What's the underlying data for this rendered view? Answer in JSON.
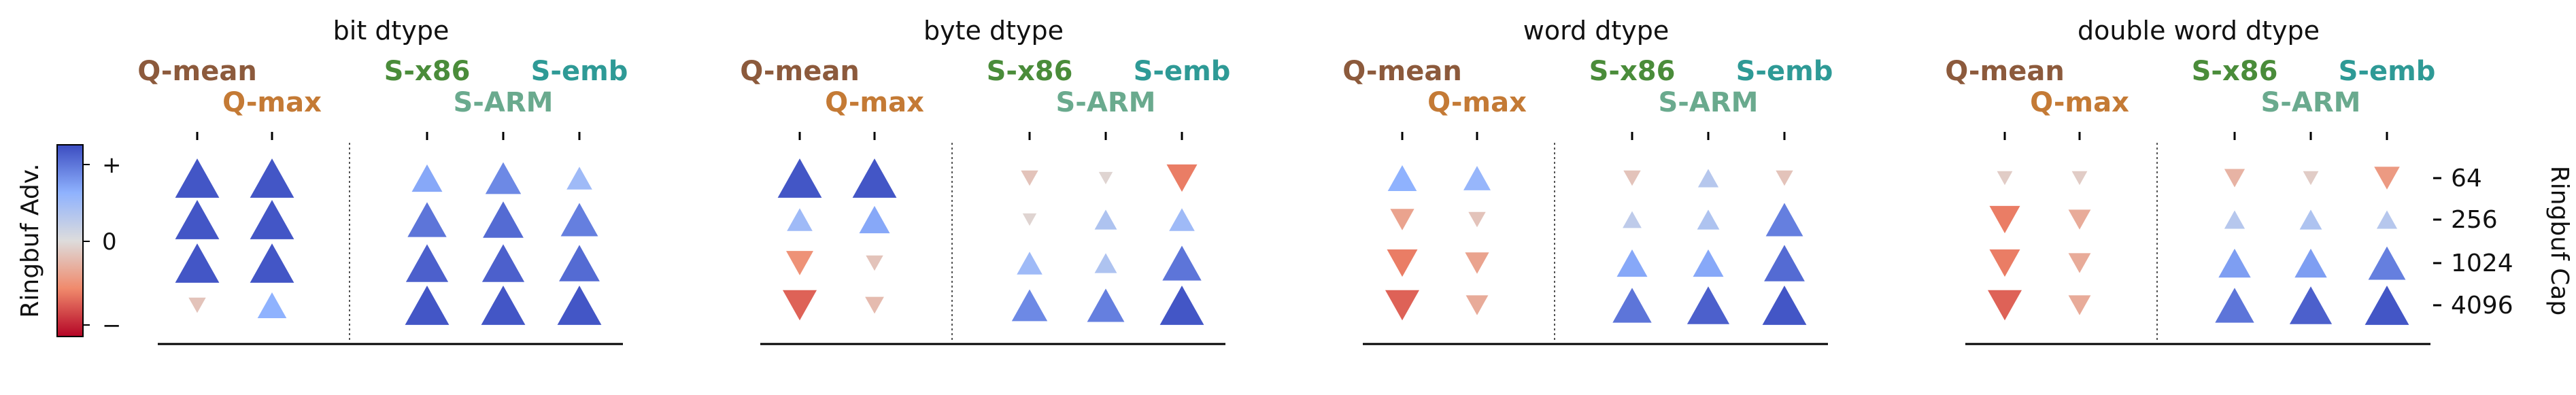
{
  "chart_data": {
    "type": "scatter",
    "marker_encoding": "triangle up = positive advantage, triangle down = negative; size and color = magnitude",
    "colorbar": {
      "label": "Ringbuf Adv.",
      "tick_labels": [
        "+",
        "0",
        "−"
      ],
      "colormap": "coolwarm",
      "range": [
        -1,
        1
      ]
    },
    "y_axis": {
      "label": "Ringbuf Cap",
      "tick_labels": [
        "64",
        "256",
        "1024",
        "4096"
      ],
      "position": "right"
    },
    "columns": [
      {
        "label": "Q-mean",
        "color": "#8c5a3c",
        "row": "upper"
      },
      {
        "label": "Q-max",
        "color": "#c47a35",
        "row": "lower"
      },
      {
        "label": "S-x86",
        "color": "#4a8c3a",
        "row": "upper"
      },
      {
        "label": "S-ARM",
        "color": "#6aaa8e",
        "row": "lower"
      },
      {
        "label": "S-emb",
        "color": "#2e9a96",
        "row": "upper"
      }
    ],
    "panels": [
      {
        "title": "bit dtype",
        "values": [
          [
            0.95,
            0.95,
            0.55,
            0.7,
            0.4
          ],
          [
            0.95,
            0.95,
            0.8,
            0.85,
            0.75
          ],
          [
            0.95,
            0.95,
            0.9,
            0.9,
            0.85
          ],
          [
            -0.15,
            0.5,
            0.95,
            0.95,
            0.95
          ]
        ]
      },
      {
        "title": "byte dtype",
        "values": [
          [
            0.95,
            0.95,
            -0.15,
            -0.05,
            -0.55
          ],
          [
            0.4,
            0.55,
            -0.05,
            0.3,
            0.4
          ],
          [
            -0.45,
            -0.15,
            0.4,
            0.3,
            0.8
          ],
          [
            -0.65,
            -0.2,
            0.7,
            0.75,
            0.95
          ]
        ]
      },
      {
        "title": "word dtype",
        "values": [
          [
            0.5,
            0.45,
            -0.15,
            0.25,
            -0.15
          ],
          [
            -0.35,
            -0.15,
            0.2,
            0.3,
            0.75
          ],
          [
            -0.55,
            -0.35,
            0.55,
            0.55,
            0.85
          ],
          [
            -0.65,
            -0.3,
            0.8,
            0.9,
            0.95
          ]
        ]
      },
      {
        "title": "double word dtype",
        "values": [
          [
            -0.1,
            -0.1,
            -0.25,
            -0.1,
            -0.4
          ],
          [
            -0.55,
            -0.3,
            0.25,
            0.3,
            0.25
          ],
          [
            -0.55,
            -0.3,
            0.6,
            0.6,
            0.75
          ],
          [
            -0.65,
            -0.3,
            0.8,
            0.9,
            0.95
          ]
        ]
      }
    ]
  }
}
